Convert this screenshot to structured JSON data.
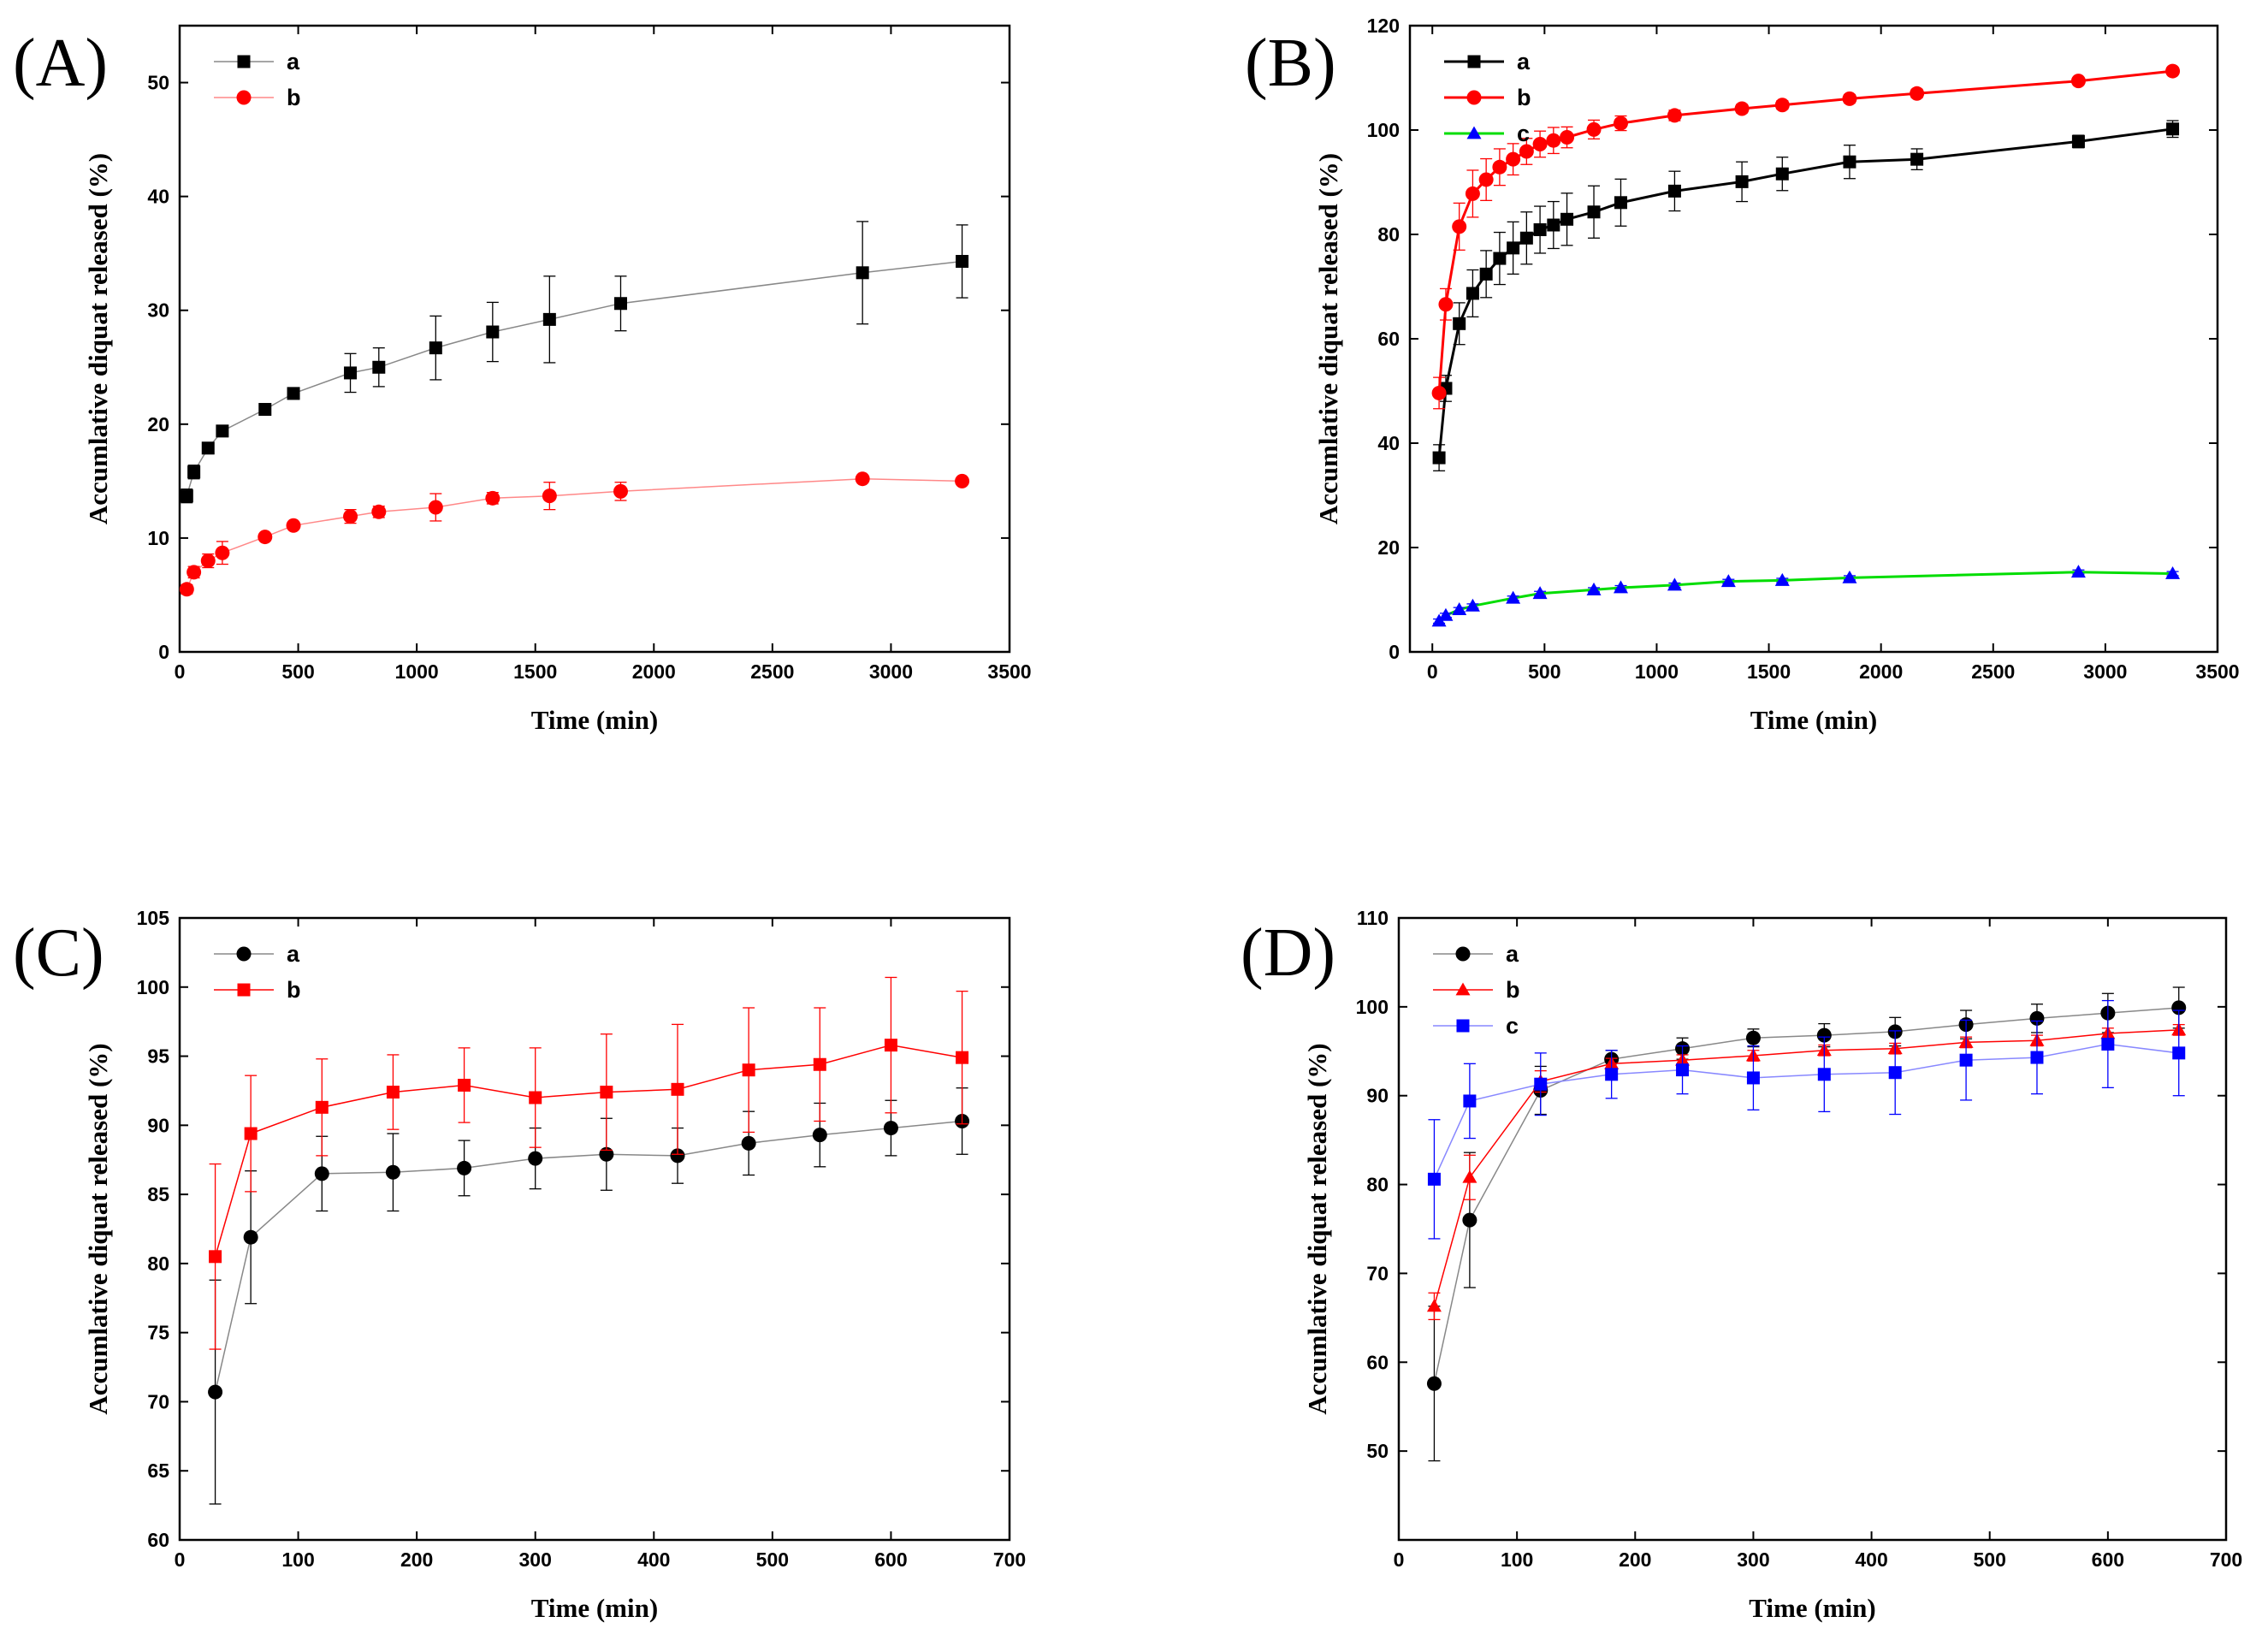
{
  "figure": {
    "colors": {
      "black": "#000000",
      "red": "#ff0000",
      "blue": "#0000ff",
      "green": "#00dd00"
    },
    "panel_labels": [
      "(A)",
      "(B)",
      "(C)",
      "(D)"
    ]
  },
  "chart_data": [
    {
      "panel": "(A)",
      "type": "line",
      "xlabel": "Time (min)",
      "ylabel": "Accumlative diquat released (%)",
      "xlim": [
        0,
        3500
      ],
      "ylim": [
        0,
        55
      ],
      "xticks": [
        0,
        500,
        1000,
        1500,
        2000,
        2500,
        3000,
        3500
      ],
      "yticks": [
        0,
        10,
        20,
        30,
        40,
        50
      ],
      "legend_position": "top-left",
      "series": [
        {
          "name": "a",
          "marker": "square",
          "color": "#000000",
          "line_color": "#888888",
          "line_width": 1.5,
          "x": [
            30,
            60,
            120,
            180,
            360,
            480,
            720,
            840,
            1080,
            1320,
            1560,
            1860,
            2880,
            3300
          ],
          "y": [
            13.7,
            15.8,
            17.9,
            19.4,
            21.3,
            22.7,
            24.5,
            25.0,
            26.7,
            28.1,
            29.2,
            30.6,
            33.3,
            34.3
          ],
          "err": [
            0.6,
            0.6,
            0.5,
            0.5,
            0.4,
            0.5,
            1.7,
            1.7,
            2.8,
            2.6,
            3.8,
            2.4,
            4.5,
            3.2
          ]
        },
        {
          "name": "b",
          "marker": "circle",
          "color": "#ff0000",
          "line_color": "#ff8888",
          "line_width": 1.5,
          "x": [
            30,
            60,
            120,
            180,
            360,
            480,
            720,
            840,
            1080,
            1320,
            1560,
            1860,
            2880,
            3300
          ],
          "y": [
            5.5,
            7.0,
            8.0,
            8.7,
            10.1,
            11.1,
            11.9,
            12.3,
            12.7,
            13.5,
            13.7,
            14.1,
            15.2,
            15.0
          ],
          "err": [
            0.4,
            0.5,
            0.6,
            1.0,
            0.3,
            0.3,
            0.6,
            0.5,
            1.2,
            0.5,
            1.2,
            0.8,
            0.3,
            0.3
          ]
        }
      ]
    },
    {
      "panel": "(B)",
      "type": "line",
      "xlabel": "Time (min)",
      "ylabel": "Accumlative diquat released (%)",
      "xlim": [
        -100,
        3500
      ],
      "ylim": [
        0,
        120
      ],
      "xticks": [
        0,
        500,
        1000,
        1500,
        2000,
        2500,
        3000,
        3500
      ],
      "yticks": [
        0,
        20,
        40,
        60,
        80,
        100,
        120
      ],
      "legend_position": "top-left",
      "series": [
        {
          "name": "a",
          "marker": "square",
          "color": "#000000",
          "line_color": "#000000",
          "line_width": 3,
          "x": [
            30,
            60,
            120,
            180,
            240,
            300,
            360,
            420,
            480,
            540,
            600,
            720,
            840,
            1080,
            1380,
            1560,
            1860,
            2160,
            2880,
            3300
          ],
          "y": [
            37.2,
            50.5,
            62.9,
            68.7,
            72.4,
            75.4,
            77.4,
            79.3,
            80.9,
            81.8,
            82.9,
            84.3,
            86.1,
            88.3,
            90.1,
            91.6,
            93.9,
            94.4,
            97.8,
            100.2
          ],
          "err": [
            2.5,
            2.5,
            4.0,
            4.5,
            4.5,
            5.0,
            5.0,
            5.0,
            4.5,
            4.5,
            5.0,
            5.0,
            4.5,
            3.8,
            3.8,
            3.2,
            3.2,
            2.0,
            1.2,
            1.6
          ]
        },
        {
          "name": "b",
          "marker": "circle",
          "color": "#ff0000",
          "line_color": "#ff0000",
          "line_width": 3,
          "x": [
            30,
            60,
            120,
            180,
            240,
            300,
            360,
            420,
            480,
            540,
            600,
            720,
            840,
            1080,
            1380,
            1560,
            1860,
            2160,
            2880,
            3300
          ],
          "y": [
            49.6,
            66.6,
            81.5,
            87.8,
            90.5,
            92.9,
            94.4,
            95.9,
            97.3,
            98.0,
            98.6,
            100.1,
            101.3,
            102.8,
            104.1,
            104.8,
            106.0,
            107.0,
            109.4,
            111.3
          ],
          "err": [
            3.0,
            3.0,
            4.5,
            4.5,
            4.0,
            3.5,
            3.0,
            2.5,
            2.5,
            2.5,
            2.0,
            1.8,
            1.4,
            1.0,
            0.8,
            0.8,
            0.8,
            0.8,
            0.6,
            0.6
          ]
        },
        {
          "name": "c",
          "marker": "triangle",
          "color": "#0000ff",
          "line_color": "#00dd00",
          "line_width": 3,
          "x": [
            30,
            60,
            120,
            180,
            360,
            480,
            720,
            840,
            1080,
            1320,
            1560,
            1860,
            2880,
            3300
          ],
          "y": [
            5.9,
            7.0,
            8.1,
            8.8,
            10.3,
            11.2,
            11.9,
            12.3,
            12.8,
            13.5,
            13.7,
            14.2,
            15.3,
            15.0
          ],
          "err": [
            0.4,
            0.4,
            0.4,
            0.4,
            0.4,
            0.4,
            0.4,
            0.4,
            0.4,
            0.4,
            0.4,
            0.4,
            0.4,
            0.4
          ]
        }
      ]
    },
    {
      "panel": "(C)",
      "type": "line",
      "xlabel": "Time (min)",
      "ylabel": "Accumlative diquat released (%)",
      "xlim": [
        0,
        700
      ],
      "ylim": [
        60,
        105
      ],
      "xticks": [
        0,
        100,
        200,
        300,
        400,
        500,
        600,
        700
      ],
      "yticks": [
        60,
        65,
        70,
        75,
        80,
        85,
        90,
        95,
        100,
        105
      ],
      "legend_position": "top-left",
      "series": [
        {
          "name": "a",
          "marker": "circle",
          "color": "#000000",
          "line_color": "#888888",
          "line_width": 1.5,
          "x": [
            30,
            60,
            120,
            180,
            240,
            300,
            360,
            420,
            480,
            540,
            600,
            660
          ],
          "y": [
            70.7,
            81.9,
            86.5,
            86.6,
            86.9,
            87.6,
            87.9,
            87.8,
            88.7,
            89.3,
            89.8,
            90.3
          ],
          "err": [
            8.1,
            4.8,
            2.7,
            2.8,
            2.0,
            2.2,
            2.6,
            2.0,
            2.3,
            2.3,
            2.0,
            2.4
          ]
        },
        {
          "name": "b",
          "marker": "square",
          "color": "#ff0000",
          "line_color": "#ff0000",
          "line_width": 1.5,
          "x": [
            30,
            60,
            120,
            180,
            240,
            300,
            360,
            420,
            480,
            540,
            600,
            660
          ],
          "y": [
            80.5,
            89.4,
            91.3,
            92.4,
            92.9,
            92.0,
            92.4,
            92.6,
            94.0,
            94.4,
            95.8,
            94.9
          ],
          "err": [
            6.7,
            4.2,
            3.5,
            2.7,
            2.7,
            3.6,
            4.2,
            4.7,
            4.5,
            4.1,
            4.9,
            4.8
          ]
        }
      ]
    },
    {
      "panel": "(D)",
      "type": "line",
      "xlabel": "Time (min)",
      "ylabel": "Accumlative diquat released (%)",
      "xlim": [
        0,
        700
      ],
      "ylim": [
        40,
        110
      ],
      "xticks": [
        0,
        100,
        200,
        300,
        400,
        500,
        600,
        700
      ],
      "yticks": [
        50,
        60,
        70,
        80,
        90,
        100,
        110
      ],
      "legend_position": "top-left",
      "series": [
        {
          "name": "a",
          "marker": "circle",
          "color": "#000000",
          "line_color": "#888888",
          "line_width": 1.5,
          "x": [
            30,
            60,
            120,
            180,
            240,
            300,
            360,
            420,
            480,
            540,
            600,
            660
          ],
          "y": [
            57.6,
            76.0,
            90.6,
            94.1,
            95.3,
            96.5,
            96.8,
            97.2,
            98.0,
            98.7,
            99.3,
            99.9
          ],
          "err": [
            8.7,
            7.6,
            2.7,
            1.0,
            1.2,
            1.0,
            1.3,
            1.6,
            1.6,
            1.6,
            2.2,
            2.3
          ]
        },
        {
          "name": "b",
          "marker": "triangle",
          "color": "#ff0000",
          "line_color": "#ff0000",
          "line_width": 1.5,
          "x": [
            30,
            60,
            120,
            180,
            240,
            300,
            360,
            420,
            480,
            540,
            600,
            660
          ],
          "y": [
            66.3,
            80.8,
            91.6,
            93.6,
            94.0,
            94.5,
            95.1,
            95.3,
            96.0,
            96.2,
            97.0,
            97.4
          ],
          "err": [
            1.5,
            2.5,
            1.2,
            0.6,
            0.6,
            0.6,
            0.6,
            0.6,
            0.6,
            0.6,
            0.6,
            0.6
          ]
        },
        {
          "name": "c",
          "marker": "square",
          "color": "#0000ff",
          "line_color": "#8888ff",
          "line_width": 1.5,
          "x": [
            30,
            60,
            120,
            180,
            240,
            300,
            360,
            420,
            480,
            540,
            600,
            660
          ],
          "y": [
            80.6,
            89.4,
            91.3,
            92.4,
            92.9,
            92.0,
            92.4,
            92.6,
            94.0,
            94.3,
            95.8,
            94.8
          ],
          "err": [
            6.7,
            4.2,
            3.5,
            2.7,
            2.7,
            3.6,
            4.2,
            4.7,
            4.5,
            4.1,
            4.9,
            4.8
          ]
        }
      ]
    }
  ]
}
